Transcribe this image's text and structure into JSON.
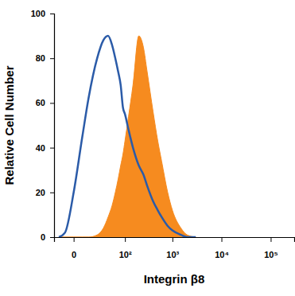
{
  "chart_data": {
    "type": "line",
    "x_label": "Integrin β8",
    "y_label": "Relative Cell Number",
    "log": "x",
    "x": [
      -10,
      -5,
      0,
      5,
      10,
      20,
      30,
      40,
      50,
      60,
      70,
      80,
      90,
      100,
      120,
      150,
      200,
      250,
      300,
      400,
      500,
      600,
      800,
      1000,
      1500,
      2000,
      3000
    ],
    "series": [
      {
        "type": "area",
        "color": "#f68b1f",
        "values": [
          0,
          0,
          0,
          0,
          0,
          1,
          4,
          9,
          14,
          20,
          26,
          32,
          37,
          43,
          54,
          68,
          90,
          85,
          74,
          56,
          43,
          34,
          20,
          12,
          4,
          1,
          0
        ]
      },
      {
        "type": "line",
        "color": "#2b5ba8",
        "values": [
          0,
          2,
          20,
          45,
          62,
          80,
          88,
          90,
          86,
          80,
          74,
          68,
          58,
          55,
          48,
          40,
          32,
          28,
          23,
          16,
          12,
          9,
          5,
          3,
          1,
          0,
          0
        ]
      }
    ],
    "xlim": [
      -15,
      300000
    ],
    "ylim": [
      0,
      100
    ],
    "xticks": [
      0,
      {
        "value": 100,
        "label": "10²"
      },
      {
        "value": 1000,
        "label": "10³"
      },
      {
        "value": 10000,
        "label": "10⁴"
      },
      {
        "value": 100000,
        "label": "10⁵"
      }
    ],
    "yticks": [
      0,
      20,
      40,
      60,
      80,
      100
    ]
  }
}
